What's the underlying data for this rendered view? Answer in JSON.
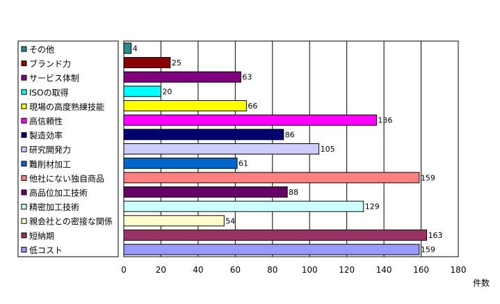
{
  "chart_data": {
    "type": "bar",
    "orientation": "horizontal",
    "categories": [
      "その他",
      "ブランド力",
      "サービス体制",
      "ISOの取得",
      "現場の高度熟練技能",
      "高信頼性",
      "製造効率",
      "研究開発力",
      "難削材加工",
      "他社にない独自商品",
      "高品位加工技術",
      "精密加工技術",
      "親会社との密接な関係",
      "短納期",
      "低コスト"
    ],
    "values": [
      4,
      25,
      63,
      20,
      66,
      136,
      86,
      105,
      61,
      159,
      88,
      129,
      54,
      163,
      159
    ],
    "colors": [
      "#2E8B8B",
      "#8B0000",
      "#800080",
      "#00FFFF",
      "#FFFF00",
      "#FF00FF",
      "#00006E",
      "#CCCCFF",
      "#0066CC",
      "#FF8080",
      "#660066",
      "#CCFFFF",
      "#FFFFCC",
      "#993366",
      "#9999FF"
    ],
    "data_labels": [
      "4",
      "25",
      "63",
      "20",
      "66",
      "136",
      "86",
      "105",
      "61",
      "159",
      "88",
      "129",
      "54",
      "163",
      "159"
    ],
    "xlabel": "件数",
    "ylabel": "",
    "xlim": [
      0,
      180
    ],
    "xticks": [
      "0",
      "20",
      "40",
      "60",
      "80",
      "100",
      "120",
      "140",
      "160",
      "180"
    ],
    "grid": true,
    "legend": "left",
    "legend_entries": [
      "その他",
      "ブランド力",
      "サービス体制",
      "ISOの取得",
      "現場の高度熟練技能",
      "高信頼性",
      "製造効率",
      "研究開発力",
      "難削材加工",
      "他社にない独自商品",
      "高品位加工技術",
      "精密加工技術",
      "親会社との密接な関係",
      "短納期",
      "低コスト"
    ]
  }
}
